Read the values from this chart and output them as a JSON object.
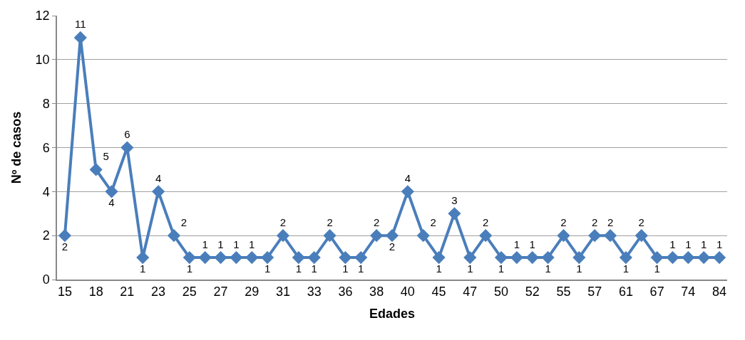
{
  "chart_data": {
    "type": "line",
    "xlabel": "Edades",
    "ylabel": "Nº de casos",
    "categories": [
      "15",
      null,
      "18",
      null,
      "21",
      null,
      "23",
      null,
      "25",
      null,
      "27",
      null,
      "29",
      null,
      "31",
      null,
      "33",
      null,
      "36",
      null,
      "38",
      null,
      "40",
      null,
      "45",
      null,
      "47",
      null,
      "50",
      null,
      "52",
      null,
      "55",
      null,
      "57",
      null,
      "61",
      null,
      "67",
      null,
      "74",
      null,
      "84"
    ],
    "series": [
      {
        "color": "#4a7ebb",
        "values": [
          2,
          11,
          5,
          4,
          6,
          1,
          4,
          2,
          1,
          1,
          1,
          1,
          1,
          1,
          2,
          1,
          1,
          2,
          1,
          1,
          2,
          2,
          4,
          2,
          1,
          3,
          1,
          2,
          1,
          1,
          1,
          1,
          2,
          1,
          2,
          2,
          1,
          2,
          1,
          1,
          1,
          1,
          1
        ]
      }
    ],
    "ylim": [
      0,
      12
    ],
    "yticks": [
      0,
      2,
      4,
      6,
      8,
      10,
      12
    ],
    "grid": "y",
    "marker": "diamond",
    "line_style": "solid",
    "data_labels": true
  }
}
